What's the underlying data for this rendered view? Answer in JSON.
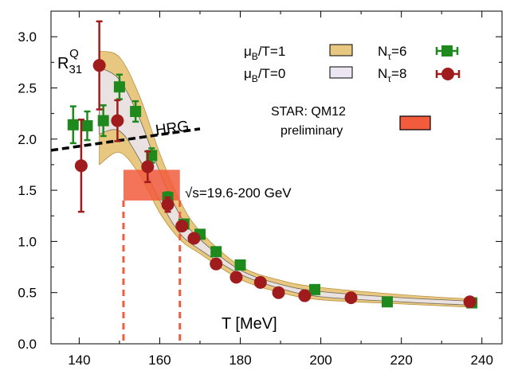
{
  "chart_data": {
    "type": "scatter",
    "title": "",
    "xlabel": "T [MeV]",
    "ylabel": "R31Q",
    "xlim": [
      133,
      245
    ],
    "ylim": [
      0.0,
      3.25
    ],
    "x_ticks": [
      140,
      160,
      180,
      200,
      220,
      240
    ],
    "y_ticks": [
      0.0,
      0.5,
      1.0,
      1.5,
      2.0,
      2.5,
      3.0
    ],
    "ylabel_parts": {
      "base": "R",
      "sub": "31",
      "sup": "Q"
    },
    "legend_position": "top-right",
    "grid": false,
    "series": [
      {
        "name": "Nτ=6",
        "label_parts": {
          "base": "N",
          "sub": "τ",
          "rest": "=6"
        },
        "marker": "square",
        "color": "#1e8a1e",
        "points": [
          {
            "x": 138.5,
            "y": 2.14,
            "err": 0.18
          },
          {
            "x": 142.0,
            "y": 2.13,
            "err": 0.14
          },
          {
            "x": 146.0,
            "y": 2.18,
            "err": 0.15
          },
          {
            "x": 150.0,
            "y": 2.51,
            "err": 0.12
          },
          {
            "x": 154.0,
            "y": 2.27,
            "err": 0.1
          },
          {
            "x": 158.0,
            "y": 1.84,
            "err": 0.07
          },
          {
            "x": 162.0,
            "y": 1.43,
            "err": 0.05
          },
          {
            "x": 166.0,
            "y": 1.17,
            "err": 0.03
          },
          {
            "x": 170.0,
            "y": 1.07,
            "err": 0.02
          },
          {
            "x": 174.0,
            "y": 0.9,
            "err": 0.02
          },
          {
            "x": 180.0,
            "y": 0.77,
            "err": 0.02
          },
          {
            "x": 198.5,
            "y": 0.53,
            "err": 0.01
          },
          {
            "x": 216.5,
            "y": 0.41,
            "err": 0.01
          },
          {
            "x": 237.5,
            "y": 0.4,
            "err": 0.01
          }
        ]
      },
      {
        "name": "Nτ=8",
        "label_parts": {
          "base": "N",
          "sub": "τ",
          "rest": "=8"
        },
        "marker": "circle",
        "color": "#a01c1c",
        "points": [
          {
            "x": 140.5,
            "y": 1.74,
            "err": 0.45
          },
          {
            "x": 145.0,
            "y": 2.72,
            "err": 0.43
          },
          {
            "x": 149.5,
            "y": 2.18,
            "err": 0.2
          },
          {
            "x": 157.0,
            "y": 1.73,
            "err": 0.15
          },
          {
            "x": 162.0,
            "y": 1.36,
            "err": 0.07
          },
          {
            "x": 165.5,
            "y": 1.15,
            "err": 0.04
          },
          {
            "x": 168.5,
            "y": 1.03,
            "err": 0.03
          },
          {
            "x": 174.0,
            "y": 0.78,
            "err": 0.02
          },
          {
            "x": 179.0,
            "y": 0.65,
            "err": 0.02
          },
          {
            "x": 185.0,
            "y": 0.6,
            "err": 0.01
          },
          {
            "x": 189.5,
            "y": 0.5,
            "err": 0.01
          },
          {
            "x": 196.0,
            "y": 0.47,
            "err": 0.01
          },
          {
            "x": 207.5,
            "y": 0.45,
            "err": 0.01
          },
          {
            "x": 237.0,
            "y": 0.41,
            "err": 0.01
          }
        ]
      }
    ],
    "bands": [
      {
        "name": "μB/T=1",
        "label_parts": {
          "base": "μ",
          "sub": "B",
          "rest": "/T=1"
        },
        "fill": "#e8c880",
        "stroke": "#b8913e",
        "x": [
          145,
          150,
          155,
          160,
          165,
          170,
          180,
          190,
          200,
          220,
          236
        ],
        "y_low": [
          1.75,
          1.87,
          1.65,
          1.28,
          1.02,
          0.88,
          0.63,
          0.5,
          0.43,
          0.39,
          0.36
        ],
        "y_high": [
          2.86,
          2.8,
          2.42,
          1.86,
          1.4,
          1.1,
          0.76,
          0.62,
          0.55,
          0.48,
          0.44
        ]
      },
      {
        "name": "μB/T=0",
        "label_parts": {
          "base": "μ",
          "sub": "B",
          "rest": "/T=0"
        },
        "fill": "#ebe6f2",
        "stroke": "#555555",
        "x": [
          145,
          150,
          155,
          160,
          165,
          170,
          180,
          190,
          200,
          220,
          236
        ],
        "y_low": [
          2.05,
          2.08,
          1.8,
          1.4,
          1.08,
          0.92,
          0.68,
          0.54,
          0.46,
          0.41,
          0.38
        ],
        "y_high": [
          2.7,
          2.58,
          2.2,
          1.68,
          1.26,
          1.02,
          0.72,
          0.58,
          0.51,
          0.45,
          0.42
        ]
      }
    ],
    "hrg": {
      "label": "HRG",
      "x": [
        133,
        170
      ],
      "y": [
        1.89,
        2.1
      ],
      "color": "#000000"
    },
    "star_box": {
      "label_line1": "STAR: QM12",
      "label_line2": "preliminary",
      "x_range": [
        151,
        165
      ],
      "y_range": [
        1.4,
        1.7
      ],
      "color": "#f25c3c",
      "dashed_x": [
        151,
        165
      ]
    },
    "annotations": {
      "sqrt_s": "√s=19.6-200 GeV"
    }
  }
}
